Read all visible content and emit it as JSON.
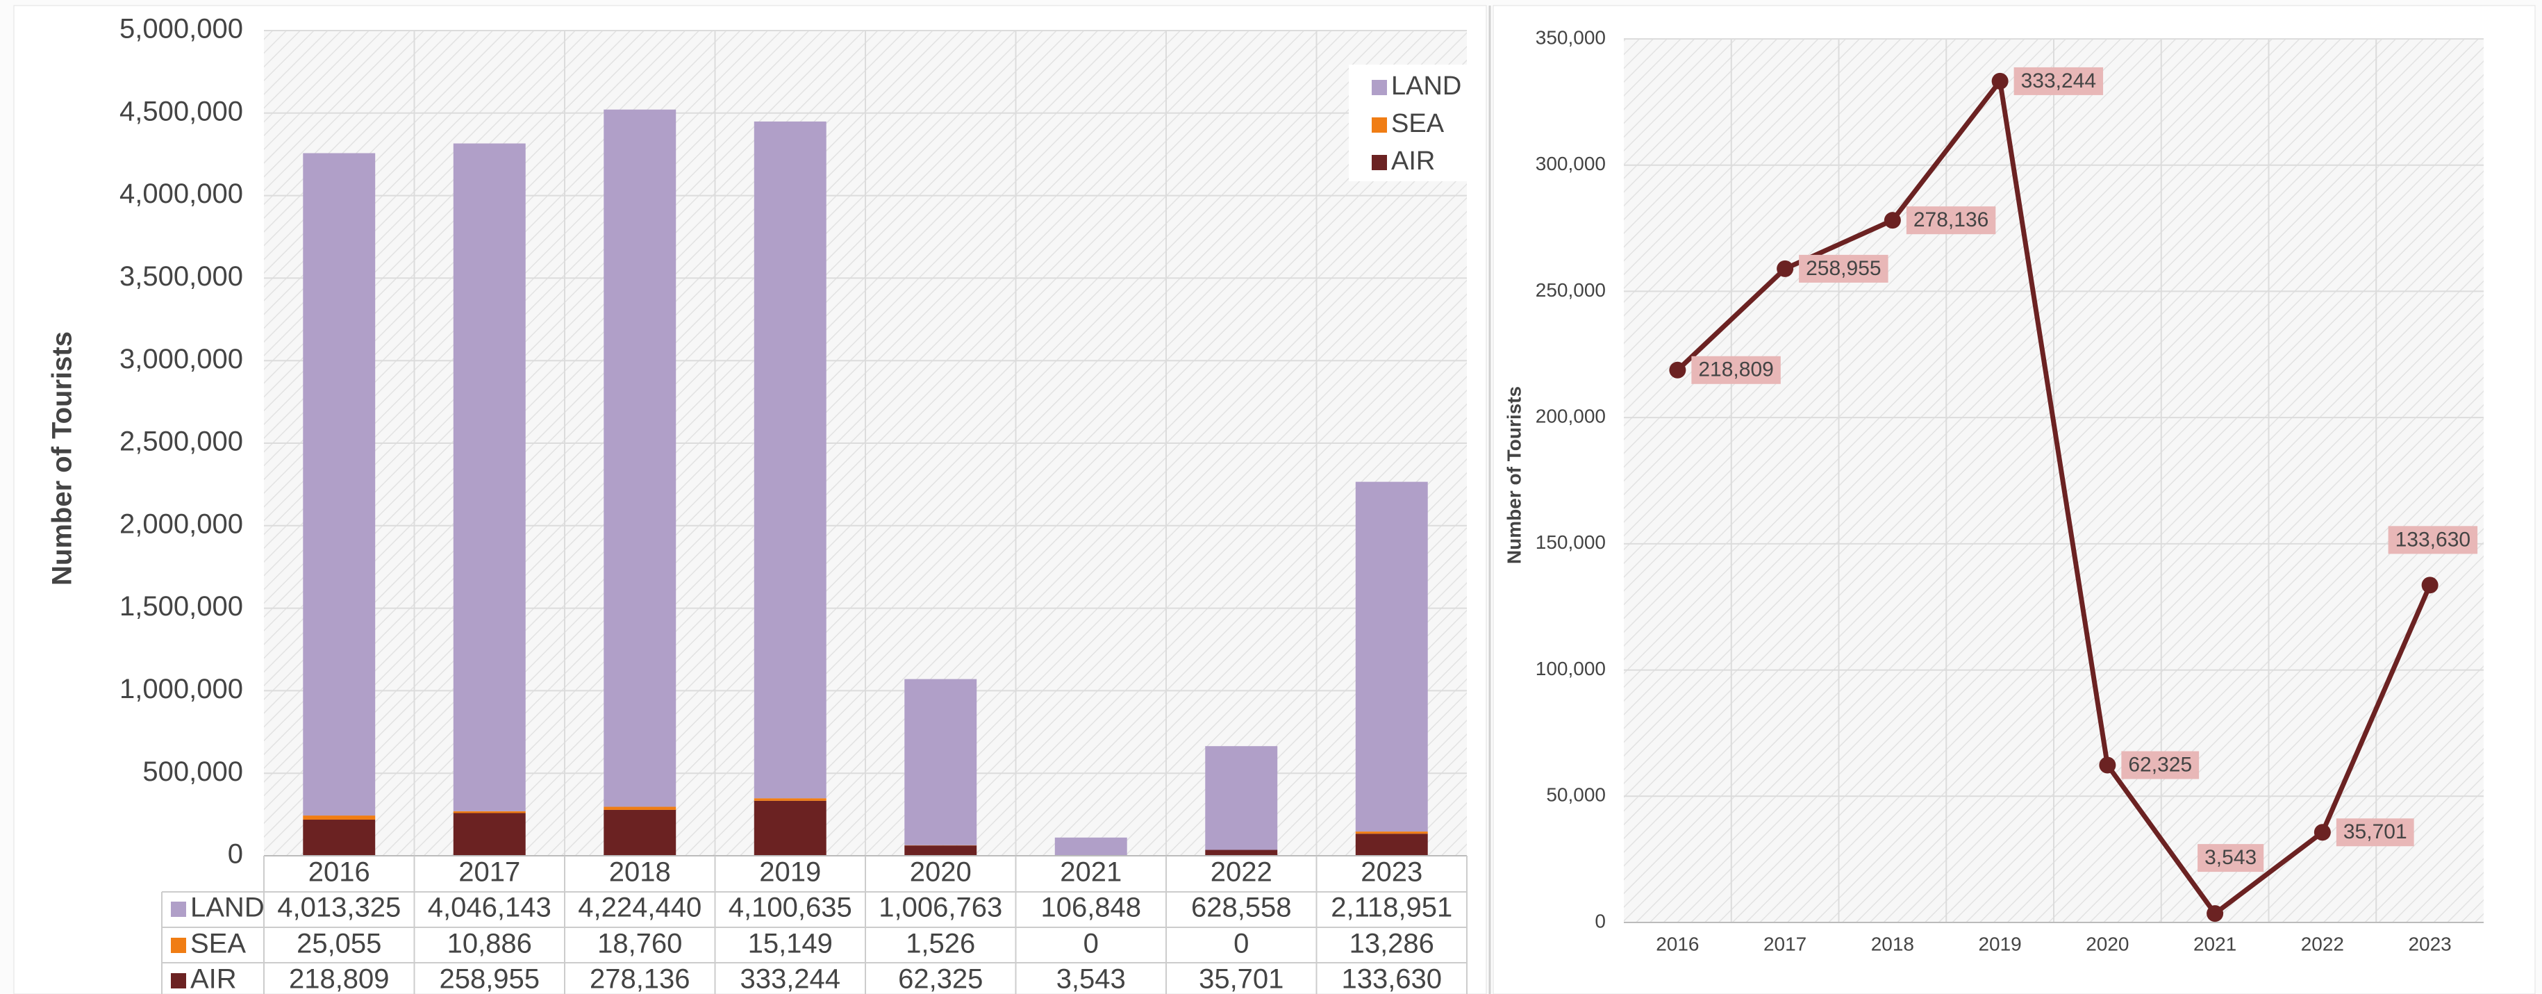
{
  "chart_data": [
    {
      "type": "bar",
      "stacked": true,
      "y_label": "Number of Tourists",
      "categories": [
        "2016",
        "2017",
        "2018",
        "2019",
        "2020",
        "2021",
        "2022",
        "2023"
      ],
      "series": [
        {
          "name": "LAND",
          "color": "#b09fc8",
          "values": [
            4013325,
            4046143,
            4224440,
            4100635,
            1006763,
            106848,
            628558,
            2118951
          ],
          "value_labels": [
            "4,013,325",
            "4,046,143",
            "4,224,440",
            "4,100,635",
            "1,006,763",
            "106,848",
            "628,558",
            "2,118,951"
          ]
        },
        {
          "name": "SEA",
          "color": "#f07d14",
          "values": [
            25055,
            10886,
            18760,
            15149,
            1526,
            0,
            0,
            13286
          ],
          "value_labels": [
            "25,055",
            "10,886",
            "18,760",
            "15,149",
            "1,526",
            "0",
            "0",
            "13,286"
          ]
        },
        {
          "name": "AIR",
          "color": "#6b2222",
          "values": [
            218809,
            258955,
            278136,
            333244,
            62325,
            3543,
            35701,
            133630
          ],
          "value_labels": [
            "218,809",
            "258,955",
            "278,136",
            "333,244",
            "62,325",
            "3,543",
            "35,701",
            "133,630"
          ]
        }
      ],
      "ylim": [
        0,
        5000000
      ],
      "yticks": [
        0,
        {
          "value": 500000,
          "label": "500,000"
        },
        {
          "value": 1000000,
          "label": "1,000,000"
        },
        {
          "value": 1500000,
          "label": "1,500,000"
        },
        {
          "value": 2000000,
          "label": "2,000,000"
        },
        {
          "value": 2500000,
          "label": "2,500,000"
        },
        {
          "value": 3000000,
          "label": "3,000,000"
        },
        {
          "value": 3500000,
          "label": "3,500,000"
        },
        {
          "value": 4000000,
          "label": "4,000,000"
        },
        {
          "value": 4500000,
          "label": "4,500,000"
        },
        {
          "value": 5000000,
          "label": "5,000,000"
        }
      ],
      "grid": true,
      "legend": "upper right"
    },
    {
      "type": "line",
      "y_label": "Number of Tourists",
      "color": "#6b2222",
      "categories": [
        "2016",
        "2017",
        "2018",
        "2019",
        "2020",
        "2021",
        "2022",
        "2023"
      ],
      "values": [
        218809,
        258955,
        278136,
        333244,
        62325,
        3543,
        35701,
        133630
      ],
      "value_labels": [
        "218,809",
        "258,955",
        "278,136",
        "333,244",
        "62,325",
        "3,543",
        "35,701",
        "133,630"
      ],
      "ylim": [
        0,
        350000
      ],
      "yticks": [
        0,
        {
          "value": 50000,
          "label": "50,000"
        },
        {
          "value": 100000,
          "label": "100,000"
        },
        {
          "value": 150000,
          "label": "150,000"
        },
        {
          "value": 200000,
          "label": "200,000"
        },
        {
          "value": 250000,
          "label": "250,000"
        },
        {
          "value": 300000,
          "label": "300,000"
        },
        {
          "value": 350000,
          "label": "350,000"
        }
      ],
      "grid": true
    }
  ]
}
